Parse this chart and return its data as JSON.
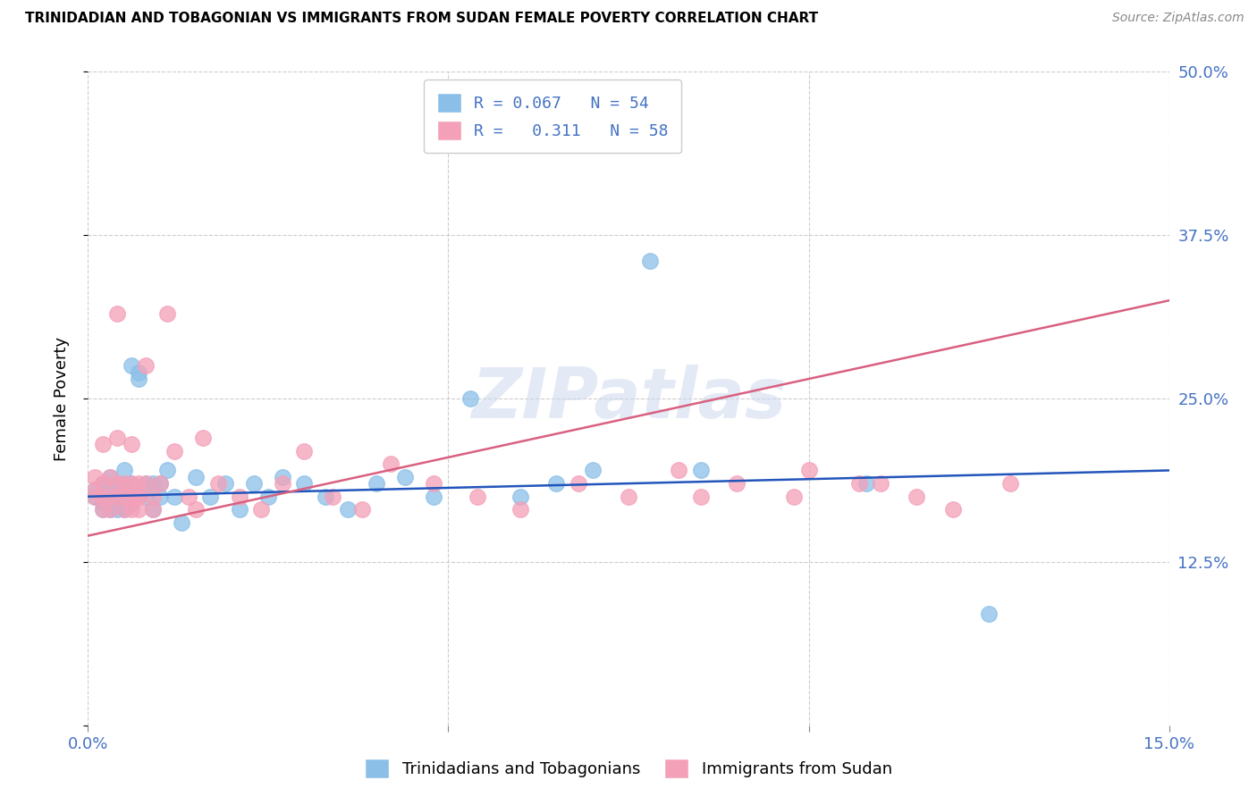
{
  "title": "TRINIDADIAN AND TOBAGONIAN VS IMMIGRANTS FROM SUDAN FEMALE POVERTY CORRELATION CHART",
  "source": "Source: ZipAtlas.com",
  "ylabel": "Female Poverty",
  "xlim": [
    0.0,
    0.15
  ],
  "ylim": [
    0.0,
    0.5
  ],
  "series1_color": "#8BBFE8",
  "series2_color": "#F4A0B8",
  "trendline1_color": "#2255BB",
  "trendline2_color": "#D96080",
  "legend_label1": "Trinidadians and Tobagonians",
  "legend_label2": "Immigrants from Sudan",
  "legend1_R": "R = 0.067",
  "legend1_N": "N = 54",
  "legend2_R": "R =   0.311",
  "legend2_N": "N = 58",
  "watermark": "ZIPatlas",
  "series1_x": [
    0.001,
    0.001,
    0.002,
    0.002,
    0.002,
    0.003,
    0.003,
    0.003,
    0.003,
    0.004,
    0.004,
    0.004,
    0.004,
    0.005,
    0.005,
    0.005,
    0.005,
    0.006,
    0.006,
    0.006,
    0.006,
    0.007,
    0.007,
    0.007,
    0.008,
    0.008,
    0.009,
    0.009,
    0.01,
    0.01,
    0.011,
    0.012,
    0.013,
    0.015,
    0.017,
    0.019,
    0.021,
    0.023,
    0.025,
    0.027,
    0.03,
    0.033,
    0.036,
    0.04,
    0.044,
    0.048,
    0.053,
    0.06,
    0.065,
    0.07,
    0.078,
    0.085,
    0.108,
    0.125
  ],
  "series1_y": [
    0.18,
    0.175,
    0.185,
    0.17,
    0.165,
    0.19,
    0.18,
    0.175,
    0.165,
    0.185,
    0.175,
    0.17,
    0.165,
    0.195,
    0.18,
    0.175,
    0.165,
    0.275,
    0.185,
    0.175,
    0.17,
    0.265,
    0.27,
    0.175,
    0.185,
    0.175,
    0.185,
    0.165,
    0.185,
    0.175,
    0.195,
    0.175,
    0.155,
    0.19,
    0.175,
    0.185,
    0.165,
    0.185,
    0.175,
    0.19,
    0.185,
    0.175,
    0.165,
    0.185,
    0.19,
    0.175,
    0.25,
    0.175,
    0.185,
    0.195,
    0.355,
    0.195,
    0.185,
    0.085
  ],
  "series2_x": [
    0.001,
    0.001,
    0.001,
    0.002,
    0.002,
    0.002,
    0.002,
    0.003,
    0.003,
    0.003,
    0.004,
    0.004,
    0.004,
    0.004,
    0.005,
    0.005,
    0.005,
    0.006,
    0.006,
    0.006,
    0.006,
    0.007,
    0.007,
    0.007,
    0.007,
    0.008,
    0.008,
    0.009,
    0.009,
    0.01,
    0.011,
    0.012,
    0.014,
    0.015,
    0.016,
    0.018,
    0.021,
    0.024,
    0.027,
    0.03,
    0.034,
    0.038,
    0.042,
    0.048,
    0.054,
    0.06,
    0.068,
    0.075,
    0.082,
    0.09,
    0.098,
    0.107,
    0.115,
    0.12,
    0.128,
    0.1,
    0.11,
    0.085
  ],
  "series2_y": [
    0.18,
    0.19,
    0.175,
    0.165,
    0.175,
    0.215,
    0.185,
    0.19,
    0.175,
    0.165,
    0.315,
    0.185,
    0.175,
    0.22,
    0.185,
    0.175,
    0.165,
    0.185,
    0.175,
    0.165,
    0.215,
    0.185,
    0.175,
    0.165,
    0.175,
    0.185,
    0.275,
    0.175,
    0.165,
    0.185,
    0.315,
    0.21,
    0.175,
    0.165,
    0.22,
    0.185,
    0.175,
    0.165,
    0.185,
    0.21,
    0.175,
    0.165,
    0.2,
    0.185,
    0.175,
    0.165,
    0.185,
    0.175,
    0.195,
    0.185,
    0.175,
    0.185,
    0.175,
    0.165,
    0.185,
    0.195,
    0.185,
    0.175
  ]
}
